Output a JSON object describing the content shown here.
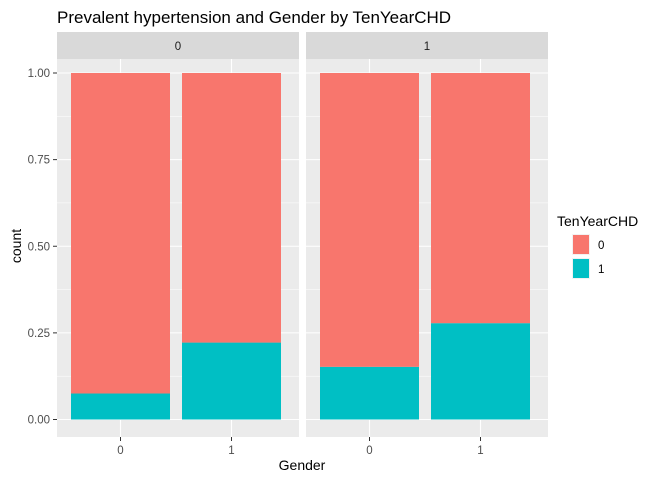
{
  "chart_data": {
    "type": "bar",
    "stacked": true,
    "title": "Prevalent hypertension and Gender by TenYearCHD",
    "xlabel": "Gender",
    "ylabel": "count",
    "ylim": [
      0,
      1
    ],
    "y_ticks": [
      "0.00",
      "0.25",
      "0.50",
      "0.75",
      "1.00"
    ],
    "y_tick_values": [
      0,
      0.25,
      0.5,
      0.75,
      1.0
    ],
    "categories": [
      "0",
      "1"
    ],
    "facets": [
      {
        "label": "0",
        "series": [
          {
            "name": "0",
            "values": [
              0.925,
              0.778
            ]
          },
          {
            "name": "1",
            "values": [
              0.075,
              0.222
            ]
          }
        ]
      },
      {
        "label": "1",
        "series": [
          {
            "name": "0",
            "values": [
              0.848,
              0.722
            ]
          },
          {
            "name": "1",
            "values": [
              0.152,
              0.278
            ]
          }
        ]
      }
    ],
    "legend": {
      "title": "TenYearCHD",
      "position": "right",
      "entries": [
        {
          "label": "0",
          "color": "#F8766D"
        },
        {
          "label": "1",
          "color": "#00BFC4"
        }
      ]
    },
    "grid": true,
    "colors": {
      "panel": "#EBEBEB",
      "strip": "#D9D9D9",
      "grid": "#FFFFFF"
    }
  }
}
